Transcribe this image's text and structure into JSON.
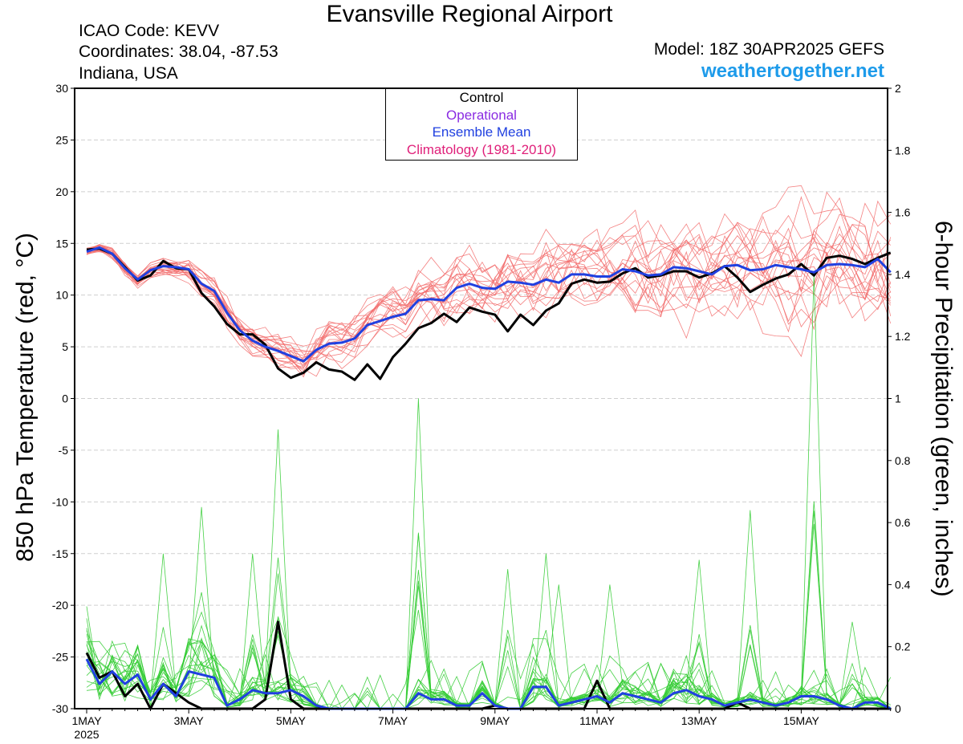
{
  "header": {
    "title": "Evansville Regional Airport",
    "icao": "ICAO Code: KEVV",
    "coords": "Coordinates: 38.04, -87.53",
    "location": "Indiana, USA",
    "model": "Model: 18Z 30APR2025 GEFS",
    "site": "weathertogether.net"
  },
  "chart_data": {
    "type": "line",
    "title": "Evansville Regional Airport",
    "ylabel": "850 hPa Temperature (red, °C)",
    "y2label": "6-hour Precipitation (green, inches)",
    "ylim": [
      -30,
      30
    ],
    "y2lim": [
      0,
      2
    ],
    "xlim": [
      0,
      63
    ],
    "x_unit": "6-hour steps from 1MAY 2025 00Z",
    "x_ticks": [
      0,
      8,
      16,
      24,
      32,
      40,
      48,
      56
    ],
    "x_tick_labels": [
      "1MAY",
      "3MAY",
      "5MAY",
      "7MAY",
      "9MAY",
      "11MAY",
      "13MAY",
      "15MAY"
    ],
    "x_year_label": "2025",
    "y_ticks": [
      30,
      25,
      20,
      15,
      10,
      5,
      0,
      -5,
      -10,
      -15,
      -20,
      -25,
      -30
    ],
    "y2_ticks": [
      "2",
      "1.8",
      "1.6",
      "1.4",
      "1.2",
      "1",
      "0.8",
      "0.6",
      "0.4",
      "0.2",
      "0"
    ],
    "legend": [
      {
        "label": "Control",
        "color": "#000000"
      },
      {
        "label": "Operational",
        "color": "#8a2be2"
      },
      {
        "label": "Ensemble Mean",
        "color": "#2040e0"
      },
      {
        "label": "Climatology (1981-2010)",
        "color": "#e0207a"
      }
    ],
    "grid": "horizontal dashed at y ticks",
    "colors": {
      "temp_member": "#f26b6b",
      "precip_member": "#33cc33",
      "control": "#000000",
      "mean": "#2040e0"
    },
    "series": [
      {
        "name": "Control",
        "axis": "temperature",
        "values": [
          14.4,
          14.5,
          14,
          12.7,
          11.4,
          11.9,
          13.3,
          12.6,
          12.5,
          10.2,
          8.9,
          7.2,
          6.2,
          6.2,
          5.2,
          2.9,
          2.0,
          2.5,
          3.5,
          2.8,
          2.6,
          1.8,
          3.3,
          1.9,
          4.0,
          5.3,
          6.8,
          7.3,
          8.2,
          7.4,
          8.8,
          8.4,
          8.1,
          6.5,
          8.1,
          7.1,
          8.5,
          9.2,
          11.1,
          11.5,
          11.2,
          11.3,
          12.1,
          12.6,
          11.7,
          11.9,
          12.3,
          12.3,
          11.7,
          12.1,
          12.8,
          11.7,
          10.3,
          11.0,
          11.6,
          12.0,
          13.0,
          11.9,
          13.6,
          13.8,
          13.5,
          13.0,
          13.6,
          14.1
        ]
      },
      {
        "name": "Ensemble Mean",
        "axis": "temperature",
        "values": [
          14.2,
          14.6,
          14,
          12.6,
          11.5,
          12.4,
          12.8,
          12.7,
          12.5,
          11.1,
          10.4,
          8.3,
          6.6,
          5.6,
          5.0,
          4.6,
          4.1,
          3.6,
          4.7,
          5.3,
          5.4,
          5.8,
          7.1,
          7.5,
          7.9,
          8.2,
          9.5,
          9.6,
          9.5,
          10.7,
          11.1,
          10.7,
          10.6,
          11.3,
          11.2,
          11.0,
          11.5,
          11.2,
          12.0,
          12.0,
          11.8,
          11.8,
          12.5,
          12.3,
          11.9,
          12.0,
          12.7,
          12.6,
          12.3,
          12.0,
          12.8,
          12.9,
          12.4,
          12.5,
          12.9,
          12.7,
          12.5,
          12.2,
          12.9,
          13.0,
          12.9,
          12.7,
          13.5,
          12.2
        ]
      },
      {
        "name": "Control precipitation",
        "axis": "precipitation",
        "values": [
          0.18,
          0.1,
          0.12,
          0.04,
          0.08,
          0,
          0.08,
          0.05,
          0.02,
          0,
          0,
          0,
          0,
          0,
          0.03,
          0.28,
          0.03,
          0,
          0,
          0,
          0,
          0,
          0,
          0,
          0,
          0,
          0,
          0,
          0,
          0,
          0,
          0,
          0.01,
          0,
          0,
          0,
          0,
          0,
          0,
          0,
          0.09,
          0,
          0,
          0,
          0,
          0,
          0,
          0,
          0,
          0,
          0,
          0.02,
          0,
          0,
          0,
          0,
          0,
          0,
          0,
          0,
          0,
          0,
          0,
          0
        ]
      },
      {
        "name": "Ensemble mean precipitation",
        "axis": "precipitation",
        "values": [
          0.16,
          0.08,
          0.12,
          0.08,
          0.11,
          0.03,
          0.08,
          0.04,
          0.12,
          0.11,
          0.1,
          0.01,
          0.03,
          0.06,
          0.05,
          0.05,
          0.06,
          0.04,
          0.01,
          0,
          0,
          0,
          0,
          0,
          0,
          0,
          0.05,
          0.03,
          0.03,
          0.01,
          0.01,
          0.05,
          0.01,
          0,
          0,
          0.07,
          0.07,
          0.01,
          0.02,
          0.03,
          0.04,
          0.02,
          0.05,
          0.04,
          0.03,
          0.02,
          0.05,
          0.06,
          0.04,
          0.03,
          0.01,
          0.02,
          0.03,
          0.02,
          0.01,
          0.02,
          0.04,
          0.04,
          0.03,
          0.01,
          0,
          0.02,
          0.02,
          0
        ]
      }
    ]
  }
}
